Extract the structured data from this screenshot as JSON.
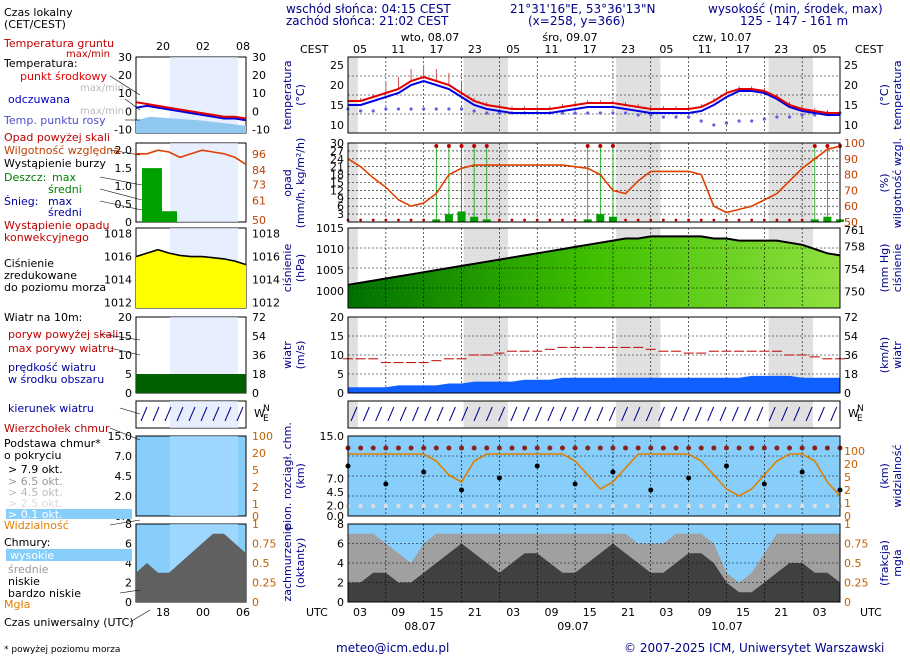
{
  "header": {
    "sunrise": "wschód słońca: 04:15 CEST",
    "sunset": "zachód słońca: 21:02 CEST",
    "coords": "21°31'16\"E, 53°36'13\"N",
    "grid": "(x=258, y=366)",
    "height_label": "wysokość (min, środek, max)",
    "height_values": "125 - 147 - 161 m"
  },
  "time_axis": {
    "top_label": "CEST",
    "bottom_label": "UTC",
    "top_hours": [
      "05",
      "11",
      "17",
      "23",
      "05",
      "11",
      "17",
      "23",
      "05",
      "11",
      "17",
      "23",
      "05"
    ],
    "bottom_hours": [
      "03",
      "09",
      "15",
      "21",
      "03",
      "09",
      "15",
      "21",
      "03",
      "09",
      "15",
      "21",
      "03"
    ],
    "top_days": [
      "wto, 08.07",
      "śro, 09.07",
      "czw, 10.07"
    ],
    "bottom_days": [
      "08.07",
      "09.07",
      "10.07"
    ]
  },
  "legend": {
    "local_time": "Czas lokalny\n(CET/CEST)",
    "hist_hours": [
      "20",
      "02",
      "08"
    ],
    "hist_utc_hours": [
      "18",
      "00",
      "06"
    ],
    "soil_temp": "Temperatura gruntu",
    "soil_minmax": "max/min",
    "temperature": "Temperatura:",
    "mid_point": "punkt środkowy",
    "maxmin": "max/min",
    "perceived": "odczuwana",
    "maxmin2": "max/min",
    "dew_point": "Temp. punktu rosy",
    "precip_above": "Opad powyżej skali",
    "humidity": "Wilgotność względna",
    "storm": "Wystąpienie burzy",
    "rain": "Deszcz:",
    "rain_max": "max",
    "rain_mid": "średni",
    "snow": "Śnieg:",
    "snow_max": "max",
    "snow_mid": "średni",
    "convective": "Wystąpienie opadu\nkonwekcyjnego",
    "pressure": "Ciśnienie\nzredukowane\ndo poziomu morza",
    "wind10": "Wiatr na 10m:",
    "gust_above": "poryw powyżej skali",
    "gust_max": "max porywy wiatru",
    "wind_speed": "prędkość wiatru\nw środku obszaru",
    "wind_dir": "kierunek wiatru",
    "cloud_top": "Wierzchołek chmur",
    "cloud_base": "Podstawa chmur*\no pokryciu",
    "okt79": "> 7.9 okt.",
    "okt65": "> 6.5 okt.",
    "okt45": "> 4.5 okt.",
    "okt25": "> 2.5 okt.",
    "okt01": "> 0.1 okt.",
    "visibility": "Widzialność",
    "clouds": "Chmury:",
    "high": "wysokie",
    "middle": "średnie",
    "low": "niskie",
    "very_low": "bardzo niskie",
    "fog": "Mgła",
    "utc_time": "Czas uniwersalny (UTC)",
    "asl_note": "* powyżej poziomu morza"
  },
  "panel_labels": {
    "temp_left": "temperatura\n(°C)",
    "temp_right": "(°C)\ntemperatura",
    "precip_left": "opad\n(mm/h, kg/m²/h)",
    "precip_right": "(%)\nwilgotność wzgl.",
    "press_left": "ciśnienie\n(hPa)",
    "press_right": "(mm Hg)\nciśnienie",
    "wind_left": "wiatr\n(m/s)",
    "wind_right": "(km/h)\nwiatr",
    "cloud_left": "pion. rozciągł. chm.\n(km)",
    "cloud_right": "(km)\nwidzialność",
    "cover_left": "zachmurzenie\n(oktanty)",
    "cover_right": "(frakcja)\nmgła"
  },
  "footer": {
    "email": "meteo@icm.edu.pl",
    "copyright": "© 2007-2025 ICM, Uniwersytet Warszawski"
  },
  "colors": {
    "temp": "#e00000",
    "perceived": "#0000e0",
    "dew": "#6060e0",
    "precip": "#00a000",
    "humidity": "#e04000",
    "pressure": "#ffff00",
    "wind": "#1060ff",
    "cloud_sky": "#87cefa",
    "visibility": "#e08000"
  },
  "chart_data": [
    {
      "type": "line",
      "title": "temperatura (°C)",
      "ylim": [
        8,
        27
      ],
      "yticks": [
        10,
        15,
        20,
        25
      ],
      "series": [
        {
          "name": "punkt środkowy",
          "values": [
            16,
            16,
            17,
            18,
            19,
            21,
            22,
            21,
            20,
            18,
            16,
            15,
            14.5,
            14,
            14,
            14,
            14,
            14.5,
            15,
            15.5,
            15.5,
            15.5,
            15,
            14.5,
            14,
            14,
            14,
            14,
            14.5,
            16,
            18,
            19,
            19,
            18.5,
            17,
            15,
            14,
            13.5,
            13,
            13
          ]
        },
        {
          "name": "odczuwana",
          "values": [
            15,
            15,
            16,
            17,
            18,
            20,
            21,
            20,
            19,
            17,
            15,
            14,
            13.5,
            13,
            13,
            13,
            13,
            13.5,
            14,
            14.5,
            14.5,
            14.5,
            14,
            13.5,
            13,
            13,
            13,
            13,
            13.5,
            15,
            17,
            18.5,
            18.5,
            18,
            16.5,
            14.5,
            13.5,
            13,
            12.5,
            12.5
          ]
        },
        {
          "name": "Temp. punktu rosy",
          "values": [
            14,
            13.5,
            13.5,
            14,
            14,
            14,
            14,
            14,
            14,
            14,
            13.5,
            13,
            13,
            13,
            13,
            13,
            13,
            13,
            13,
            13,
            13,
            13,
            13,
            12.5,
            12.5,
            12,
            12,
            12,
            11,
            10,
            10.5,
            11,
            11,
            11.5,
            12,
            12,
            12.5,
            12.5,
            13,
            13
          ]
        }
      ]
    },
    {
      "type": "bar",
      "title": "opad (mm/h, kg/m²/h)",
      "ylim": [
        0,
        30
      ],
      "yticks": [
        3,
        6,
        9,
        12,
        15,
        18,
        21,
        24,
        27,
        30
      ],
      "y2lim": [
        50,
        100
      ],
      "y2ticks": [
        50,
        60,
        70,
        80,
        90,
        100
      ],
      "series": [
        {
          "name": "Deszcz średni",
          "values": [
            0,
            0,
            0,
            0,
            0,
            0,
            0,
            1,
            3,
            4,
            2,
            1,
            0,
            0,
            0,
            0,
            0,
            0,
            0,
            1,
            3,
            2,
            0,
            0,
            0,
            0,
            0,
            0,
            0,
            0,
            0,
            0,
            0,
            0,
            0,
            0,
            0,
            1,
            2,
            1
          ]
        },
        {
          "name": "Wilgotność względna",
          "values": [
            90,
            85,
            78,
            72,
            64,
            60,
            62,
            68,
            80,
            84,
            86,
            86,
            86,
            86,
            86,
            86,
            86,
            86,
            85,
            84,
            80,
            70,
            68,
            76,
            82,
            82,
            82,
            82,
            80,
            60,
            56,
            58,
            60,
            64,
            68,
            76,
            84,
            90,
            96,
            98
          ]
        }
      ]
    },
    {
      "type": "area",
      "title": "ciśnienie (hPa)",
      "ylim": [
        996,
        1015
      ],
      "yticks": [
        1000,
        1005,
        1010,
        1015
      ],
      "values": [
        1001.5,
        1002,
        1002.5,
        1003,
        1003.5,
        1004,
        1004.5,
        1005,
        1005.5,
        1006,
        1006.5,
        1007,
        1007.5,
        1008,
        1008.5,
        1009,
        1009.5,
        1010,
        1010.5,
        1011,
        1011.5,
        1012,
        1012.5,
        1012.5,
        1013,
        1013,
        1013,
        1013,
        1013,
        1012.5,
        1012.5,
        1012,
        1012,
        1012,
        1012,
        1011.5,
        1011,
        1010,
        1009,
        1008.5
      ]
    },
    {
      "type": "line",
      "title": "wiatr (m/s)",
      "ylim": [
        0,
        20
      ],
      "yticks": [
        0,
        5,
        10,
        15,
        20
      ],
      "series": [
        {
          "name": "max porywy wiatru",
          "values": [
            9,
            9,
            9,
            8,
            8,
            8,
            8,
            8.5,
            9,
            9,
            10,
            10,
            10.5,
            11,
            11,
            11,
            11.5,
            12,
            12,
            12,
            12,
            12,
            12,
            12,
            11.5,
            11,
            11,
            10.5,
            10.5,
            11,
            11,
            11,
            11,
            11,
            11,
            10,
            10,
            9.5,
            9,
            9
          ]
        },
        {
          "name": "prędkość wiatru",
          "values": [
            1.5,
            1.5,
            1.5,
            1.5,
            2,
            2,
            2,
            2,
            2.5,
            2.5,
            3,
            3,
            3,
            3,
            3.5,
            3.5,
            3.5,
            4,
            4,
            4,
            4,
            4,
            4,
            4,
            4,
            4,
            4,
            4,
            4,
            4,
            4,
            4,
            4.5,
            4.5,
            4.5,
            4.5,
            4,
            4,
            4,
            4
          ]
        }
      ]
    },
    {
      "type": "line",
      "title": "pion. rozciągł. chm. (km)",
      "ylim": [
        0,
        15
      ],
      "yticks": [
        0,
        2.0,
        4.5,
        7.0,
        15.0
      ],
      "series": [
        {
          "name": "Widzialność",
          "values": [
            8,
            8,
            8,
            8,
            8,
            8,
            8,
            7,
            5,
            4,
            7,
            8,
            8,
            8,
            8,
            8,
            8,
            8,
            7,
            5,
            3,
            4,
            6,
            8,
            8,
            8,
            8,
            8,
            7,
            5,
            3,
            2,
            3,
            5,
            7,
            8,
            8,
            7,
            4,
            2
          ]
        }
      ]
    },
    {
      "type": "area",
      "title": "zachmurzenie (oktanty)",
      "ylim": [
        0,
        8
      ],
      "yticks": [
        0,
        2,
        4,
        6,
        8
      ],
      "series": [
        {
          "name": "wysokie",
          "values": [
            7,
            7,
            7,
            6,
            5,
            4,
            6,
            7,
            7,
            7,
            7,
            7,
            7,
            7,
            7,
            7,
            7,
            7,
            7,
            7,
            7,
            7,
            7,
            6,
            6,
            6,
            7,
            7,
            7,
            6,
            3,
            2,
            3,
            5,
            7,
            7,
            7,
            7,
            7,
            7
          ]
        },
        {
          "name": "niskie",
          "values": [
            2,
            2,
            3,
            3,
            2,
            2,
            3,
            4,
            5,
            6,
            5,
            4,
            3,
            4,
            5,
            5,
            4,
            3,
            3,
            4,
            5,
            6,
            5,
            4,
            3,
            3,
            4,
            5,
            5,
            4,
            2,
            1,
            1,
            2,
            3,
            4,
            4,
            3,
            3,
            2
          ]
        }
      ]
    }
  ]
}
